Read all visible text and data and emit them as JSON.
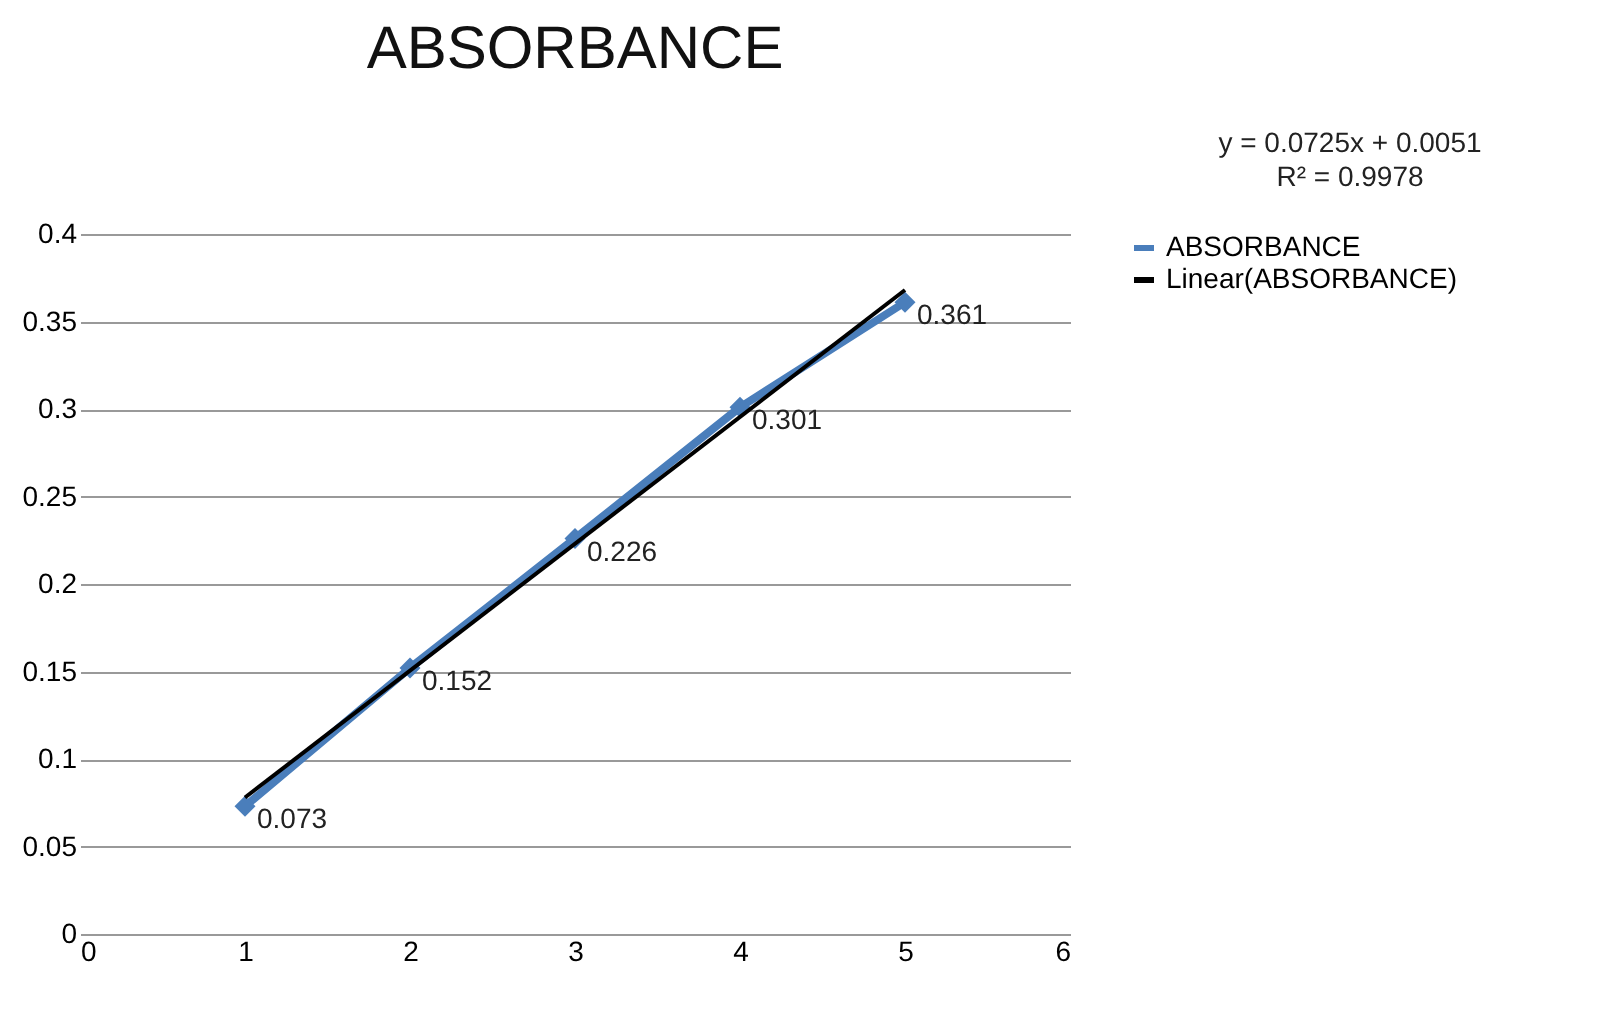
{
  "chart_data": {
    "type": "line",
    "title": "ABSORBANCE",
    "x": [
      1,
      2,
      3,
      4,
      5
    ],
    "series": [
      {
        "name": "ABSORBANCE",
        "color": "#4a7ebb",
        "values": [
          0.073,
          0.152,
          0.226,
          0.301,
          0.361
        ],
        "value_labels": [
          "0.073",
          "0.152",
          "0.226",
          "0.301",
          "0.361"
        ],
        "marker": "diamond"
      },
      {
        "name": "Linear(ABSORBANCE)",
        "color": "#000000",
        "type": "line",
        "x": [
          1,
          5
        ],
        "values": [
          0.078,
          0.368
        ],
        "marker": "none"
      }
    ],
    "xlim": [
      0,
      6
    ],
    "xticks": [
      0,
      1,
      2,
      3,
      4,
      5,
      6
    ],
    "ylim": [
      0,
      0.4
    ],
    "yticks": [
      0,
      0.05,
      0.1,
      0.15,
      0.2,
      0.25,
      0.3,
      0.35,
      0.4
    ],
    "grid": "y",
    "legend": "right",
    "line_style": "solid",
    "annotations": [
      "y = 0.0725x + 0.0051",
      "R² = 0.9978"
    ]
  }
}
